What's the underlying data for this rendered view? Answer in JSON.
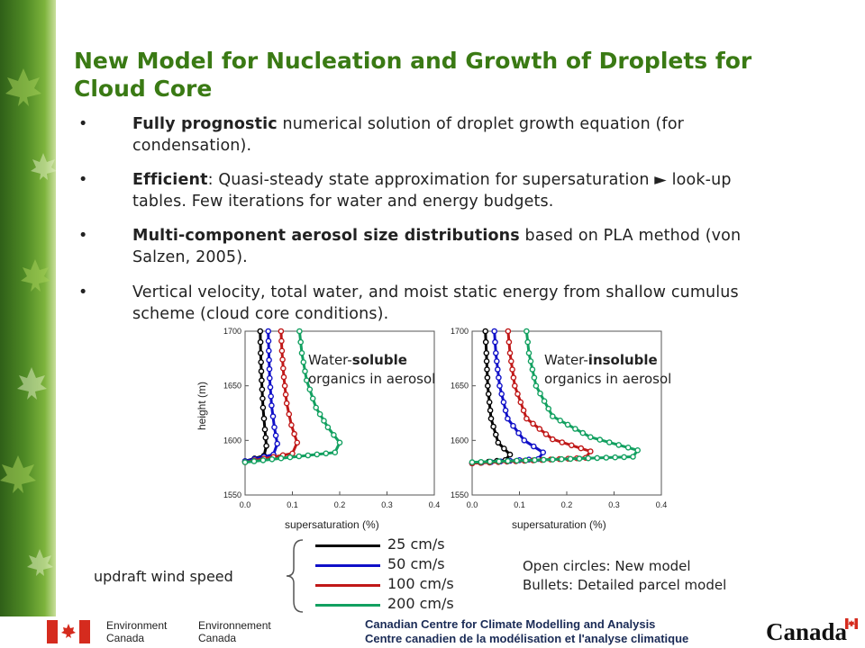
{
  "slide": {
    "title": "New Model for Nucleation and Growth of Droplets for Cloud Core",
    "bullets": [
      {
        "bold": "Fully prognostic",
        "rest": " numerical solution of droplet growth equation (for condensation)."
      },
      {
        "bold": "Efficient",
        "rest": ": Quasi-steady state approximation for supersaturation ► look-up tables. Few iterations for water and energy budgets."
      },
      {
        "bold": "Multi-component aerosol size distributions",
        "rest": " based on PLA method (von Salzen, 2005)."
      },
      {
        "bold": "",
        "rest": "Vertical velocity, total water, and moist static energy from shallow cumulus scheme (cloud core conditions)."
      }
    ],
    "bullet_char": "•"
  },
  "panels": {
    "left_note": {
      "pre": "Water-",
      "bold": "soluble",
      "post": " organics in aerosol"
    },
    "right_note": {
      "pre": "Water-",
      "bold": "insoluble",
      "post": " organics in aerosol"
    },
    "ylabel": "height (m)",
    "xlabel": "supersaturation (%)"
  },
  "legend": {
    "group_label": "updraft wind speed",
    "items": [
      {
        "label": "25 cm/s",
        "color": "#000000"
      },
      {
        "label": "50 cm/s",
        "color": "#1010c8"
      },
      {
        "label": "100 cm/s",
        "color": "#c01818"
      },
      {
        "label": "200 cm/s",
        "color": "#12a060"
      }
    ],
    "note1": "Open circles: New model",
    "note2": "Bullets: Detailed parcel model"
  },
  "footer": {
    "env_en_1": "Environment",
    "env_en_2": "Canada",
    "env_fr_1": "Environnement",
    "env_fr_2": "Canada",
    "centre_en": "Canadian Centre for Climate Modelling and Analysis",
    "centre_fr": "Centre canadien de la modélisation et l'analyse climatique",
    "wordmark": "Canada"
  },
  "chart_data": [
    {
      "type": "line",
      "title": "",
      "xlabel": "supersaturation (%)",
      "ylabel": "height (m)",
      "xlim": [
        0.0,
        0.4
      ],
      "ylim": [
        1550,
        1700
      ],
      "xticks": [
        "0.0",
        "0.1",
        "0.2",
        "0.3",
        "0.4"
      ],
      "yticks": [
        "1550",
        "1600",
        "1650",
        "1700"
      ],
      "series": [
        {
          "name": "25 cm/s",
          "color": "#000000",
          "x": [
            0.0,
            0.04,
            0.045,
            0.042,
            0.038,
            0.035,
            0.033,
            0.032
          ],
          "y": [
            1581,
            1586,
            1595,
            1610,
            1630,
            1655,
            1680,
            1700
          ]
        },
        {
          "name": "50 cm/s",
          "color": "#1010c8",
          "x": [
            0.0,
            0.06,
            0.068,
            0.062,
            0.056,
            0.052,
            0.05,
            0.049
          ],
          "y": [
            1581,
            1587,
            1597,
            1612,
            1632,
            1657,
            1682,
            1700
          ]
        },
        {
          "name": "100 cm/s",
          "color": "#c01818",
          "x": [
            0.0,
            0.1,
            0.11,
            0.098,
            0.088,
            0.082,
            0.078,
            0.076
          ],
          "y": [
            1580,
            1588,
            1598,
            1614,
            1634,
            1658,
            1682,
            1700
          ]
        },
        {
          "name": "200 cm/s",
          "color": "#12a060",
          "x": [
            0.0,
            0.19,
            0.2,
            0.175,
            0.15,
            0.13,
            0.12,
            0.115
          ],
          "y": [
            1580,
            1589,
            1598,
            1612,
            1630,
            1655,
            1680,
            1700
          ]
        }
      ]
    },
    {
      "type": "line",
      "title": "",
      "xlabel": "supersaturation (%)",
      "ylabel": "",
      "xlim": [
        0.0,
        0.4
      ],
      "ylim": [
        1550,
        1700
      ],
      "xticks": [
        "0.0",
        "0.1",
        "0.2",
        "0.3",
        "0.4"
      ],
      "yticks": [
        "1550",
        "1600",
        "1650",
        "1700"
      ],
      "series": [
        {
          "name": "25 cm/s",
          "color": "#000000",
          "x": [
            0.0,
            0.07,
            0.08,
            0.055,
            0.04,
            0.033,
            0.03,
            0.028
          ],
          "y": [
            1579,
            1582,
            1587,
            1598,
            1620,
            1650,
            1680,
            1700
          ]
        },
        {
          "name": "50 cm/s",
          "color": "#1010c8",
          "x": [
            0.0,
            0.14,
            0.15,
            0.11,
            0.075,
            0.058,
            0.05,
            0.047
          ],
          "y": [
            1579,
            1583,
            1589,
            1600,
            1620,
            1650,
            1680,
            1700
          ]
        },
        {
          "name": "100 cm/s",
          "color": "#c01818",
          "x": [
            0.0,
            0.24,
            0.25,
            0.17,
            0.115,
            0.09,
            0.08,
            0.076
          ],
          "y": [
            1579,
            1584,
            1590,
            1601,
            1620,
            1650,
            1680,
            1700
          ]
        },
        {
          "name": "200 cm/s",
          "color": "#12a060",
          "x": [
            0.0,
            0.34,
            0.35,
            0.25,
            0.17,
            0.135,
            0.12,
            0.115
          ],
          "y": [
            1580,
            1585,
            1591,
            1603,
            1622,
            1650,
            1680,
            1700
          ]
        }
      ]
    }
  ]
}
